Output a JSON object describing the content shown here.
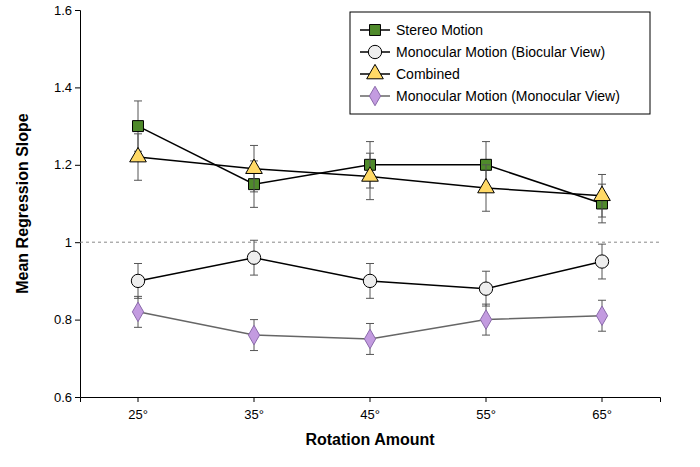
{
  "chart_data": {
    "type": "line",
    "x_label": "Rotation Amount",
    "y_label": "Mean Regression Slope",
    "categories": [
      "25°",
      "35°",
      "45°",
      "55°",
      "65°"
    ],
    "ylim": [
      0.6,
      1.6
    ],
    "yticks": [
      0.6,
      0.8,
      1,
      1.2,
      1.4,
      1.6
    ],
    "reference_line": 1,
    "legend": "upper right",
    "grid": false,
    "series": [
      {
        "name": "Stereo Motion",
        "color": "#4f8a2b",
        "marker": "square",
        "values": [
          1.3,
          1.15,
          1.2,
          1.2,
          1.1
        ],
        "errors": [
          0.065,
          0.06,
          0.06,
          0.06,
          0.05
        ]
      },
      {
        "name": "Monocular Motion (Biocular View)",
        "color": "#eeeeee",
        "marker": "circle",
        "values": [
          0.9,
          0.96,
          0.9,
          0.88,
          0.95
        ],
        "errors": [
          0.045,
          0.045,
          0.045,
          0.045,
          0.045
        ]
      },
      {
        "name": "Combined",
        "color": "#ffd966",
        "marker": "triangle",
        "values": [
          1.22,
          1.19,
          1.17,
          1.14,
          1.12
        ],
        "errors": [
          0.06,
          0.06,
          0.06,
          0.06,
          0.055
        ]
      },
      {
        "name": "Monocular Motion (Monocular View)",
        "color": "#c39be0",
        "marker": "diamond",
        "values": [
          0.82,
          0.76,
          0.75,
          0.8,
          0.81
        ],
        "errors": [
          0.04,
          0.04,
          0.04,
          0.04,
          0.04
        ]
      }
    ]
  }
}
